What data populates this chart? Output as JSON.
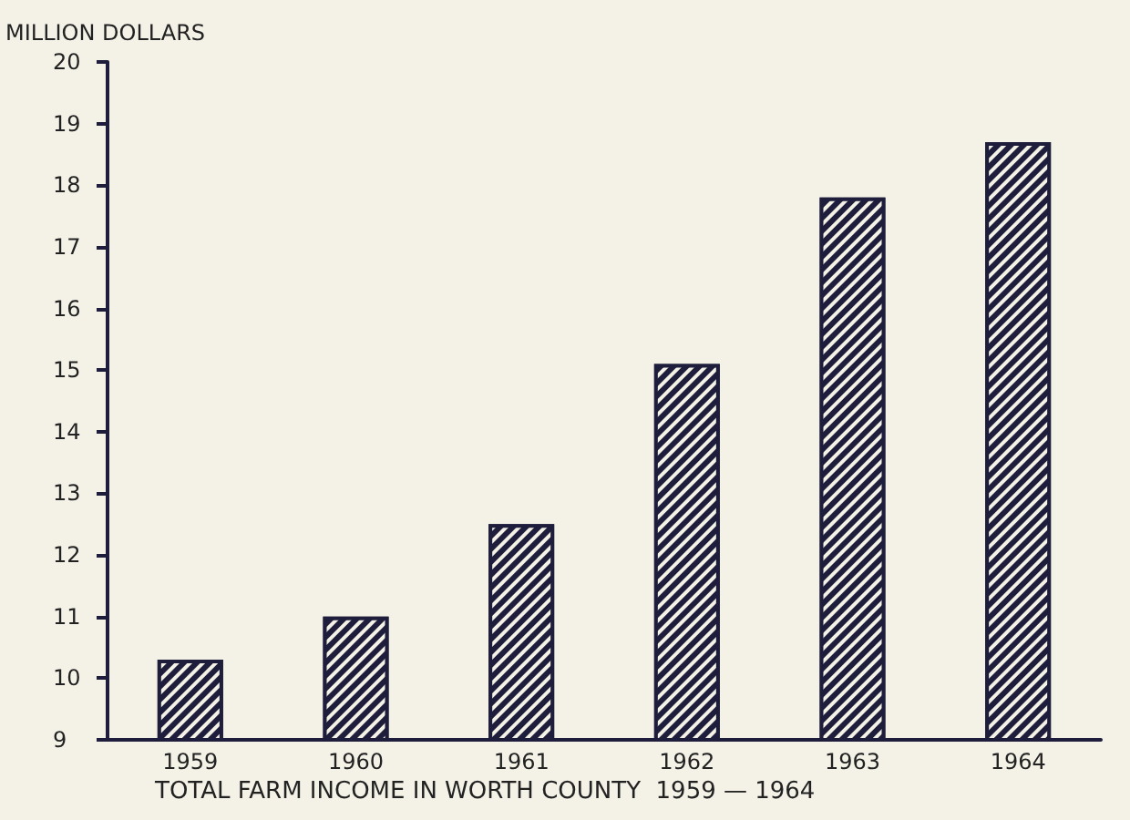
{
  "chart_data": {
    "type": "bar",
    "title": "TOTAL FARM INCOME IN WORTH COUNTY  1959 — 1964",
    "ylabel": "MILLION DOLLARS",
    "categories": [
      "1959",
      "1960",
      "1961",
      "1962",
      "1963",
      "1964"
    ],
    "values": [
      10.3,
      11.0,
      12.5,
      15.1,
      17.8,
      18.7
    ],
    "color": "#1e1e3c",
    "ylim": [
      9,
      20
    ],
    "yticks": [
      9,
      10,
      11,
      12,
      13,
      14,
      15,
      16,
      17,
      18,
      19,
      20
    ],
    "grid": false
  }
}
